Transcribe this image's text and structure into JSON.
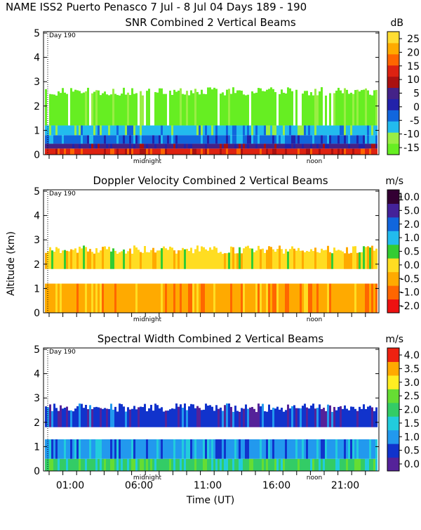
{
  "header": "NAME ISS2 Puerto Penasco    7 Jul -  8 Jul 04 Days 189 - 190",
  "y_axis_label": "Altitude (km)",
  "x_axis_label": "Time (UT)",
  "chart_data": [
    {
      "type": "heatmap",
      "title": "SNR Combined 2 Vertical Beams",
      "unit": "dB",
      "day_marker": "Day 190",
      "midnight_label": "midnight",
      "noon_label": "noon",
      "ylim": [
        0,
        5
      ],
      "yticks": [
        "0",
        "1",
        "2",
        "3",
        "4",
        "5"
      ],
      "colorbar_ticks": [
        "-15",
        "-10",
        "-5",
        "0",
        "5",
        "10",
        "15",
        "20",
        "25"
      ],
      "colors": [
        "#66ee22",
        "#99ee44",
        "#22bbee",
        "#1166dd",
        "#2222aa",
        "#442288",
        "#aa1111",
        "#dd2211",
        "#ff6600",
        "#ffaa00",
        "#ffdd33"
      ],
      "layers": [
        {
          "name": "surface",
          "ymin": 0.0,
          "ymax": 0.25,
          "color": 7
        },
        {
          "name": "strong",
          "ymin": 0.25,
          "ymax": 0.45,
          "color": 5
        },
        {
          "name": "mid",
          "ymin": 0.45,
          "ymax": 0.8,
          "color": 3
        },
        {
          "name": "weak",
          "ymin": 0.8,
          "ymax": 1.2,
          "color": 2
        },
        {
          "name": "noise",
          "ymin": 1.2,
          "ymax": 2.6,
          "color": 0
        }
      ]
    },
    {
      "type": "heatmap",
      "title": "Doppler Velocity Combined 2 Vertical Beams",
      "unit": "m/s",
      "day_marker": "Day 190",
      "midnight_label": "midnight",
      "noon_label": "noon",
      "ylim": [
        0,
        5
      ],
      "yticks": [
        "0",
        "1",
        "2",
        "3",
        "4",
        "5"
      ],
      "colorbar_ticks": [
        "-2.0",
        "-1.0",
        "-0.5",
        "0.0",
        "0.5",
        "1.0",
        "2.0",
        "5.0",
        "10.0"
      ],
      "colors": [
        "#ee1111",
        "#ff6600",
        "#ffaa00",
        "#ffdd22",
        "#33cc33",
        "#22bbee",
        "#1166dd",
        "#442299",
        "#330033"
      ],
      "layers": [
        {
          "name": "boundary",
          "ymin": 0.0,
          "ymax": 1.2,
          "color": 2
        },
        {
          "name": "upper",
          "ymin": 1.8,
          "ymax": 2.6,
          "color": 3
        }
      ]
    },
    {
      "type": "heatmap",
      "title": "Spectral Width Combined 2 Vertical Beams",
      "unit": "m/s",
      "day_marker": "Day 190",
      "midnight_label": "midnight",
      "noon_label": "noon",
      "ylim": [
        0,
        5
      ],
      "yticks": [
        "0",
        "1",
        "2",
        "3",
        "4",
        "5"
      ],
      "xticks": [
        "01:00",
        "06:00",
        "11:00",
        "16:00",
        "21:00"
      ],
      "colorbar_ticks": [
        "0.0",
        "0.5",
        "1.0",
        "1.5",
        "2.0",
        "2.5",
        "3.0",
        "3.5",
        "4.0"
      ],
      "colors": [
        "#552299",
        "#1133cc",
        "#2299ee",
        "#22ccdd",
        "#33cc66",
        "#66dd33",
        "#ffee22",
        "#ffaa00",
        "#ee2211"
      ],
      "layers": [
        {
          "name": "surface",
          "ymin": 0.0,
          "ymax": 0.5,
          "color": 4
        },
        {
          "name": "boundary",
          "ymin": 0.5,
          "ymax": 1.3,
          "color": 2
        },
        {
          "name": "upper",
          "ymin": 1.8,
          "ymax": 2.6,
          "color": 1
        }
      ]
    }
  ]
}
